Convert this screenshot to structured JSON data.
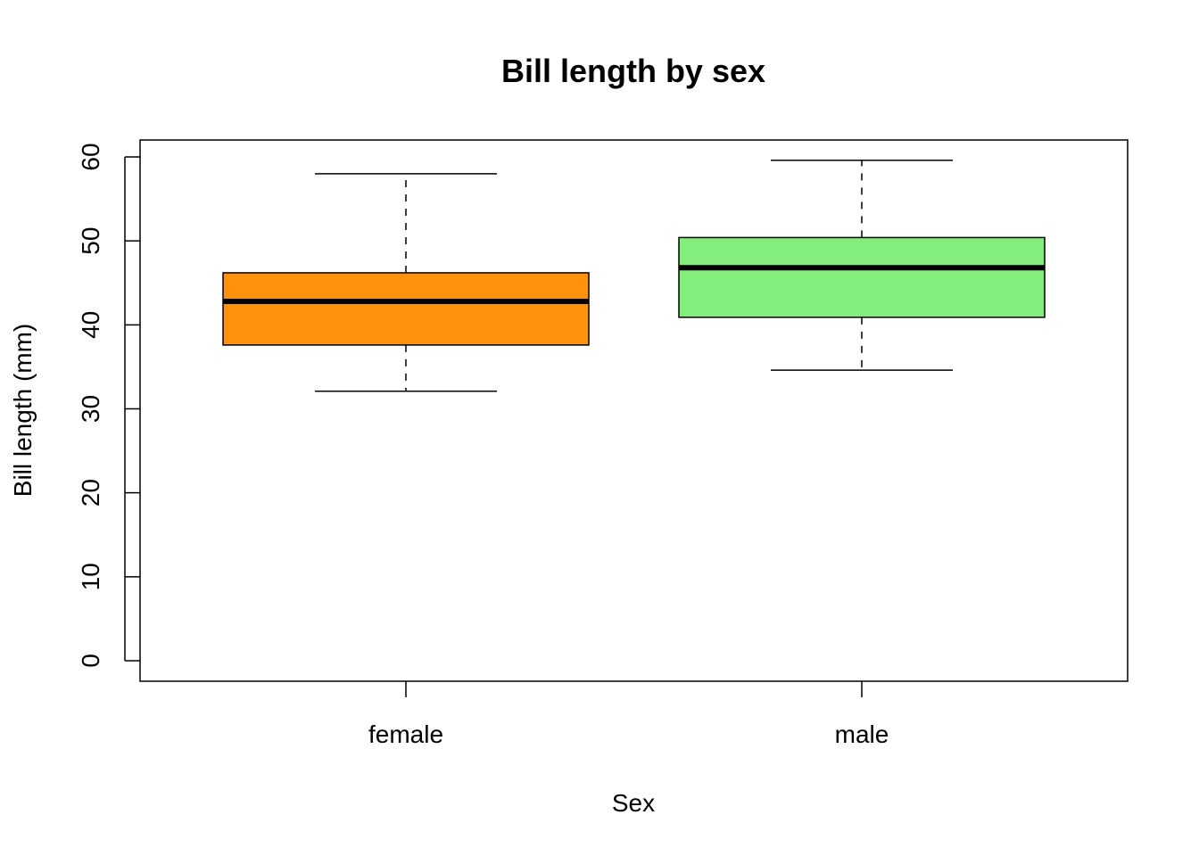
{
  "chart_data": {
    "type": "box",
    "title": "Bill length by sex",
    "xlabel": "Sex",
    "ylabel": "Bill length (mm)",
    "ylim": [
      0,
      60
    ],
    "yticks": [
      0,
      10,
      20,
      30,
      40,
      50,
      60
    ],
    "categories": [
      "female",
      "male"
    ],
    "boxes": [
      {
        "name": "female",
        "whisker_low": 32.1,
        "q1": 37.6,
        "median": 42.8,
        "q3": 46.2,
        "whisker_high": 58.0,
        "color": "#FF920C"
      },
      {
        "name": "male",
        "whisker_low": 34.6,
        "q1": 40.9,
        "median": 46.8,
        "q3": 50.4,
        "whisker_high": 59.6,
        "color": "#84EE7C"
      }
    ],
    "grid": false,
    "legend": "none"
  }
}
